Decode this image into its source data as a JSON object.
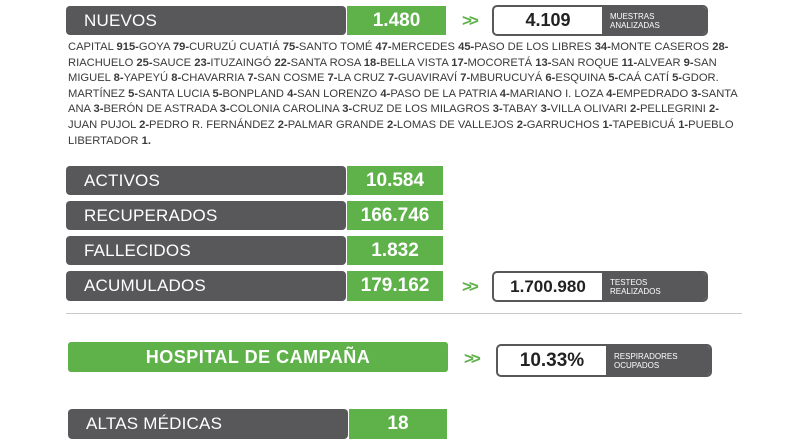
{
  "nuevos": {
    "label": "NUEVOS",
    "value": "1.480"
  },
  "muestras": {
    "value": "4.109",
    "caption_line1": "MUESTRAS",
    "caption_line2": "ANALIZADAS"
  },
  "arrows": ">>",
  "localities": [
    {
      "name": "CAPITAL",
      "count": "915"
    },
    {
      "name": "GOYA",
      "count": "79"
    },
    {
      "name": "CURUZÚ CUATIÁ",
      "count": "75"
    },
    {
      "name": "SANTO TOMÉ",
      "count": "47"
    },
    {
      "name": "MERCEDES",
      "count": "45"
    },
    {
      "name": "PASO DE LOS LIBRES",
      "count": "34"
    },
    {
      "name": "MONTE CASEROS",
      "count": "28"
    },
    {
      "name": "RIACHUELO",
      "count": "25"
    },
    {
      "name": "SAUCE",
      "count": "23"
    },
    {
      "name": "ITUZAINGÓ",
      "count": "22"
    },
    {
      "name": "SANTA ROSA",
      "count": "18"
    },
    {
      "name": "BELLA VISTA",
      "count": "17"
    },
    {
      "name": "MOCORETÁ",
      "count": "13"
    },
    {
      "name": "SAN ROQUE",
      "count": "11"
    },
    {
      "name": "ALVEAR",
      "count": "9"
    },
    {
      "name": "SAN MIGUEL",
      "count": "8"
    },
    {
      "name": "YAPEYÚ",
      "count": "8"
    },
    {
      "name": "CHAVARRIA",
      "count": "7"
    },
    {
      "name": "SAN COSME",
      "count": "7"
    },
    {
      "name": "LA CRUZ",
      "count": "7"
    },
    {
      "name": "GUAVIRAVÍ",
      "count": "7"
    },
    {
      "name": "MBURUCUYÁ",
      "count": "6"
    },
    {
      "name": "ESQUINA",
      "count": "5"
    },
    {
      "name": "CAÁ CATÍ",
      "count": "5"
    },
    {
      "name": "GDOR. MARTÍNEZ",
      "count": "5"
    },
    {
      "name": "SANTA LUCIA",
      "count": "5"
    },
    {
      "name": "BONPLAND",
      "count": "4"
    },
    {
      "name": "SAN LORENZO",
      "count": "4"
    },
    {
      "name": "PASO DE LA PATRIA",
      "count": "4"
    },
    {
      "name": "MARIANO I. LOZA",
      "count": "4"
    },
    {
      "name": "EMPEDRADO",
      "count": "3"
    },
    {
      "name": "SANTA ANA",
      "count": "3"
    },
    {
      "name": "BERÓN DE ASTRADA",
      "count": "3"
    },
    {
      "name": "COLONIA CAROLINA",
      "count": "3"
    },
    {
      "name": "CRUZ DE LOS MILAGROS",
      "count": "3"
    },
    {
      "name": "TABAY",
      "count": "3"
    },
    {
      "name": "VILLA OLIVARI",
      "count": "2"
    },
    {
      "name": "PELLEGRINI",
      "count": "2"
    },
    {
      "name": "JUAN PUJOL",
      "count": "2"
    },
    {
      "name": "PEDRO R. FERNÁNDEZ",
      "count": "2"
    },
    {
      "name": "PALMAR GRANDE",
      "count": "2"
    },
    {
      "name": "LOMAS DE VALLEJOS",
      "count": "2"
    },
    {
      "name": "GARRUCHOS",
      "count": "1"
    },
    {
      "name": "TAPEBICUÁ",
      "count": "1"
    },
    {
      "name": "PUEBLO LIBERTADOR",
      "count": "1"
    }
  ],
  "activos": {
    "label": "ACTIVOS",
    "value": "10.584"
  },
  "recuperados": {
    "label": "RECUPERADOS",
    "value": "166.746"
  },
  "fallecidos": {
    "label": "FALLECIDOS",
    "value": "1.832"
  },
  "acumulados": {
    "label": "ACUMULADOS",
    "value": "179.162"
  },
  "testeos": {
    "value": "1.700.980",
    "caption_line1": "TESTEOS",
    "caption_line2": "REALIZADOS"
  },
  "hospital": {
    "label": "HOSPITAL DE CAMPAÑA"
  },
  "respiradores": {
    "value": "10.33%",
    "caption_line1": "RESPIRADORES",
    "caption_line2": "OCUPADOS"
  },
  "altas": {
    "label": "ALTAS MÉDICAS",
    "value": "18"
  }
}
